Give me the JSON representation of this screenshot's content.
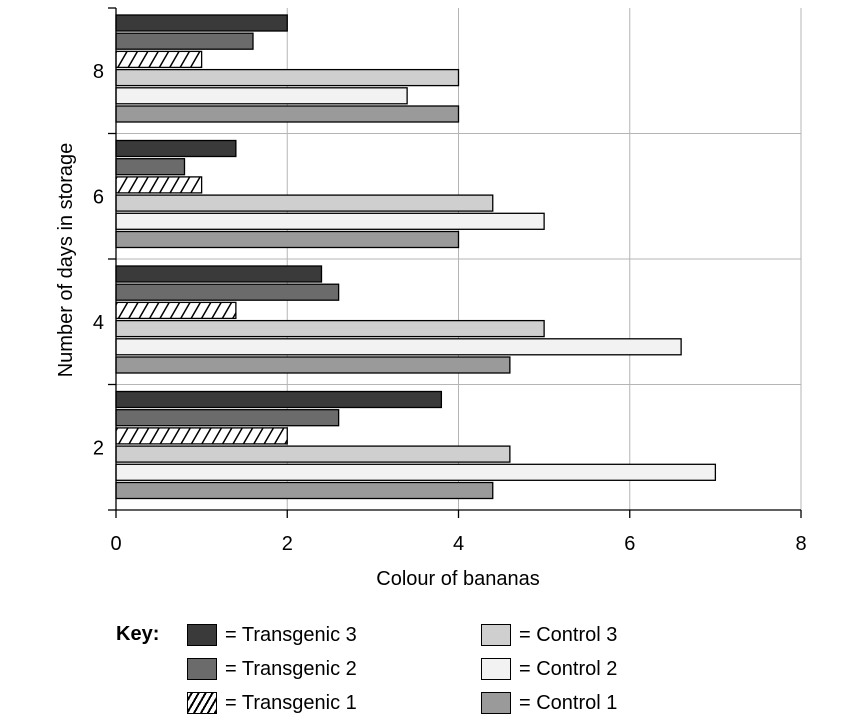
{
  "chart_data": {
    "type": "bar",
    "orientation": "horizontal",
    "categories": [
      "2",
      "4",
      "6",
      "8"
    ],
    "series": [
      {
        "name": "Transgenic 3",
        "values": [
          3.8,
          2.4,
          1.4,
          2.0
        ],
        "color": "#3a3a3a",
        "pattern": "solid"
      },
      {
        "name": "Transgenic 2",
        "values": [
          2.6,
          2.6,
          0.8,
          1.6
        ],
        "color": "#6b6b6b",
        "pattern": "solid"
      },
      {
        "name": "Transgenic 1",
        "values": [
          2.0,
          1.4,
          1.0,
          1.0
        ],
        "color": "#ffffff",
        "pattern": "hatch"
      },
      {
        "name": "Control 3",
        "values": [
          4.6,
          5.0,
          4.4,
          4.0
        ],
        "color": "#cfcfcf",
        "pattern": "solid"
      },
      {
        "name": "Control 2",
        "values": [
          7.0,
          6.6,
          5.0,
          3.4
        ],
        "color": "#f2f2f2",
        "pattern": "solid"
      },
      {
        "name": "Control 1",
        "values": [
          4.4,
          4.6,
          4.0,
          4.0
        ],
        "color": "#9a9a9a",
        "pattern": "solid"
      }
    ],
    "xlabel": "Colour of bananas",
    "ylabel": "Number of days in storage",
    "xlim": [
      0,
      8
    ],
    "xticks": [
      "0",
      "2",
      "4",
      "6",
      "8"
    ],
    "grid": "vertical",
    "legend_placement": "bottom",
    "legend_title": "Key:",
    "legend_labels": [
      "= Transgenic 3",
      "= Transgenic 2",
      "= Transgenic 1",
      "= Control 3",
      "= Control 2",
      "= Control 1"
    ]
  }
}
